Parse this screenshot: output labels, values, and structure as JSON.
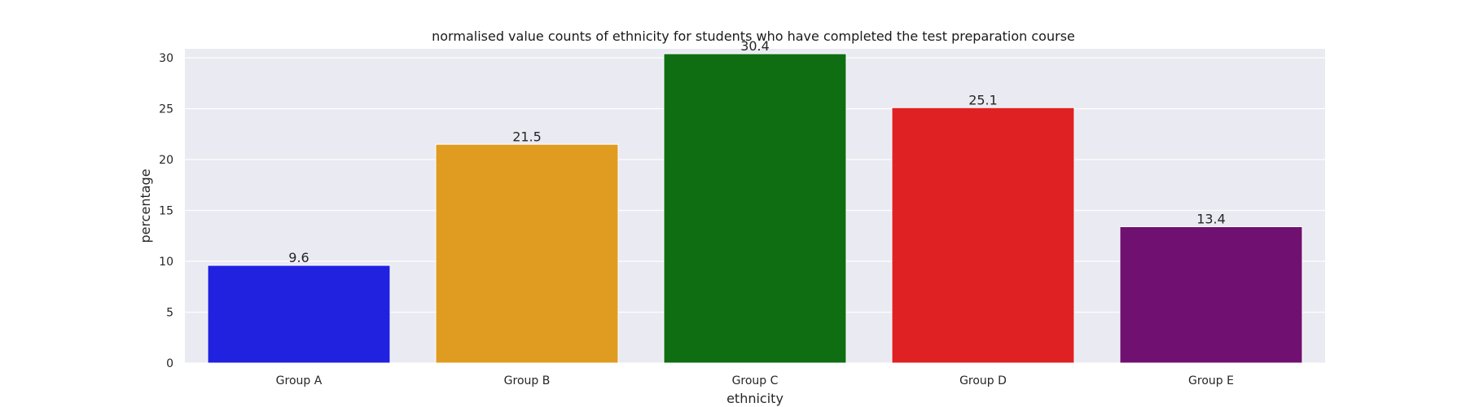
{
  "chart_data": {
    "type": "bar",
    "title": "normalised value counts of ethnicity for students who have completed the test preparation course",
    "xlabel": "ethnicity",
    "ylabel": "percentage",
    "categories": [
      "Group A",
      "Group B",
      "Group C",
      "Group D",
      "Group E"
    ],
    "values": [
      9.6,
      21.5,
      30.4,
      25.1,
      13.4
    ],
    "data_labels": [
      "9.6",
      "21.5",
      "30.4",
      "25.1",
      "13.4"
    ],
    "colors": [
      "#2121e0",
      "#e09c21",
      "#0f6e12",
      "#e02124",
      "#701070"
    ],
    "yticks": [
      0,
      5,
      10,
      15,
      20,
      25,
      30
    ],
    "ylim": [
      0,
      32
    ],
    "grid": true,
    "background": "#eaeaf2"
  }
}
